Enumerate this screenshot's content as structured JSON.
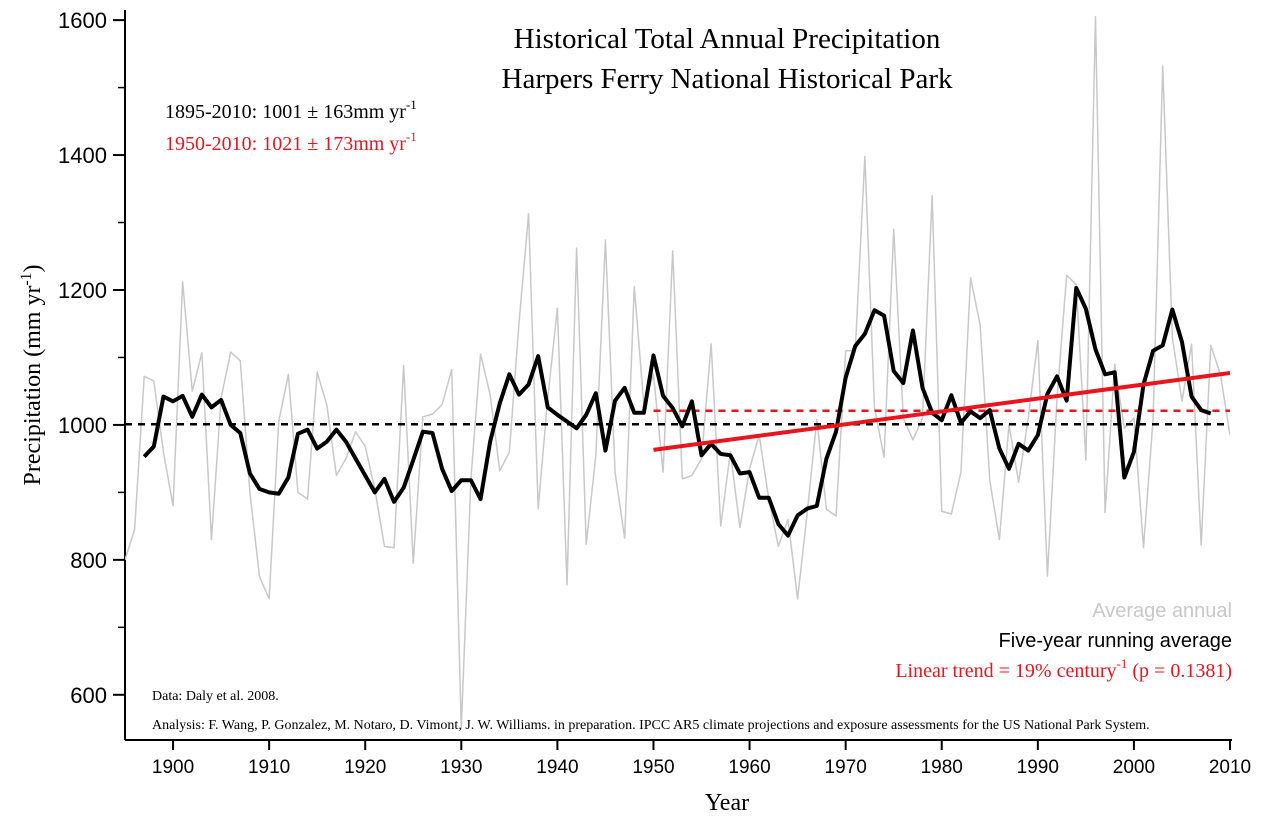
{
  "chart_data": {
    "type": "line",
    "title": [
      "Historical Total Annual Precipitation",
      "Harpers Ferry National Historical Park"
    ],
    "x_label": "Year",
    "y_label": [
      "Precipitation (mm yr",
      "-1",
      ")"
    ],
    "xlim": [
      1895,
      2010
    ],
    "ylim": [
      533,
      1615
    ],
    "xticks": [
      1900,
      1910,
      1920,
      1930,
      1940,
      1950,
      1960,
      1970,
      1980,
      1990,
      2000,
      2010
    ],
    "yticks": [
      600,
      800,
      1000,
      1200,
      1400,
      1600
    ],
    "y_minor_ticks": [
      700,
      900,
      1100,
      1300,
      1500
    ],
    "series": [
      {
        "name": [
          "Average annual"
        ],
        "color": "#c8c8c8",
        "width": 1.5,
        "x": [
          1895,
          1896,
          1897,
          1898,
          1899,
          1900,
          1901,
          1902,
          1903,
          1904,
          1905,
          1906,
          1907,
          1908,
          1909,
          1910,
          1911,
          1912,
          1913,
          1914,
          1915,
          1916,
          1917,
          1918,
          1919,
          1920,
          1921,
          1922,
          1923,
          1924,
          1925,
          1926,
          1927,
          1928,
          1929,
          1930,
          1931,
          1932,
          1933,
          1934,
          1935,
          1936,
          1937,
          1938,
          1939,
          1940,
          1941,
          1942,
          1943,
          1944,
          1945,
          1946,
          1947,
          1948,
          1949,
          1950,
          1951,
          1952,
          1953,
          1954,
          1955,
          1956,
          1957,
          1958,
          1959,
          1960,
          1961,
          1962,
          1963,
          1964,
          1965,
          1966,
          1967,
          1968,
          1969,
          1970,
          1971,
          1972,
          1973,
          1974,
          1975,
          1976,
          1977,
          1978,
          1979,
          1980,
          1981,
          1982,
          1983,
          1984,
          1985,
          1986,
          1987,
          1988,
          1989,
          1990,
          1991,
          1992,
          1993,
          1994,
          1995,
          1996,
          1997,
          1998,
          1999,
          2000,
          2001,
          2002,
          2003,
          2004,
          2005,
          2006,
          2007,
          2008,
          2009,
          2010
        ],
        "values": [
          800,
          845,
          1072,
          1065,
          960,
          880,
          1212,
          1050,
          1107,
          830,
          1040,
          1108,
          1095,
          900,
          775,
          742,
          1005,
          1075,
          900,
          890,
          1078,
          1030,
          925,
          950,
          990,
          968,
          905,
          820,
          818,
          1088,
          795,
          1012,
          1016,
          1030,
          1082,
          550,
          920,
          1105,
          1045,
          932,
          960,
          1150,
          1313,
          876,
          1040,
          1173,
          763,
          1262,
          823,
          955,
          1274,
          930,
          832,
          1205,
          1030,
          1075,
          930,
          1258,
          920,
          925,
          950,
          1120,
          850,
          960,
          848,
          935,
          985,
          890,
          820,
          860,
          742,
          870,
          1008,
          875,
          865,
          1110,
          1110,
          1398,
          1025,
          952,
          1290,
          1010,
          978,
          1010,
          1340,
          872,
          868,
          930,
          1218,
          1148,
          918,
          830,
          1000,
          915,
          1010,
          1125,
          776,
          1040,
          1222,
          1208,
          948,
          1605,
          870,
          1090,
          995,
          1010,
          818,
          1010,
          1532,
          1130,
          1035,
          1120,
          822,
          1118,
          1075,
          985
        ]
      },
      {
        "name": [
          "Five-year running average"
        ],
        "color": "#000000",
        "width": 4,
        "x": [
          1897,
          1898,
          1899,
          1900,
          1901,
          1902,
          1903,
          1904,
          1905,
          1906,
          1907,
          1908,
          1909,
          1910,
          1911,
          1912,
          1913,
          1914,
          1915,
          1916,
          1917,
          1918,
          1919,
          1920,
          1921,
          1922,
          1923,
          1924,
          1925,
          1926,
          1927,
          1928,
          1929,
          1930,
          1931,
          1932,
          1933,
          1934,
          1935,
          1936,
          1937,
          1938,
          1939,
          1940,
          1941,
          1942,
          1943,
          1944,
          1945,
          1946,
          1947,
          1948,
          1949,
          1950,
          1951,
          1952,
          1953,
          1954,
          1955,
          1956,
          1957,
          1958,
          1959,
          1960,
          1961,
          1962,
          1963,
          1964,
          1965,
          1966,
          1967,
          1968,
          1969,
          1970,
          1971,
          1972,
          1973,
          1974,
          1975,
          1976,
          1977,
          1978,
          1979,
          1980,
          1981,
          1982,
          1983,
          1984,
          1985,
          1986,
          1987,
          1988,
          1989,
          1990,
          1991,
          1992,
          1993,
          1994,
          1995,
          1996,
          1997,
          1998,
          1999,
          2000,
          2001,
          2002,
          2003,
          2004,
          2005,
          2006,
          2007,
          2008
        ],
        "values": [
          953,
          968,
          1042,
          1035,
          1043,
          1012,
          1045,
          1026,
          1037,
          1000,
          988,
          928,
          905,
          900,
          898,
          922,
          987,
          993,
          965,
          975,
          993,
          975,
          950,
          925,
          900,
          920,
          886,
          907,
          948,
          990,
          988,
          935,
          902,
          918,
          918,
          890,
          975,
          1032,
          1075,
          1045,
          1060,
          1102,
          1026,
          1015,
          1005,
          995,
          1015,
          1047,
          962,
          1036,
          1055,
          1018,
          1018,
          1103,
          1043,
          1025,
          998,
          1035,
          955,
          972,
          957,
          955,
          928,
          930,
          892,
          892,
          853,
          836,
          866,
          876,
          880,
          950,
          990,
          1070,
          1117,
          1135,
          1170,
          1162,
          1080,
          1062,
          1140,
          1055,
          1018,
          1007,
          1044,
          1003,
          1020,
          1010,
          1022,
          965,
          935,
          972,
          962,
          985,
          1046,
          1072,
          1036,
          1203,
          1172,
          1112,
          1075,
          1078,
          922,
          960,
          1060,
          1110,
          1118,
          1171,
          1123,
          1042,
          1022,
          1017
        ]
      },
      {
        "name": [
          "Linear trend = 19% century",
          "-1",
          " (p = 0.1381)"
        ],
        "color": "#e8141e",
        "width": 4,
        "x": [
          1950,
          2010
        ],
        "values": [
          963,
          1077
        ]
      }
    ],
    "reference_lines": [
      {
        "value": 1001,
        "x": [
          1895,
          2010
        ],
        "color": "#000000"
      },
      {
        "value": 1021,
        "x": [
          1950,
          2010
        ],
        "color": "#e8141e"
      }
    ],
    "annotations": [
      {
        "text": [
          "1895-2010: 1001 ±  163mm yr",
          "-1"
        ],
        "color": "#000000"
      },
      {
        "text": [
          "1950-2010: 1021 ±  173mm yr",
          "-1"
        ],
        "color": "#e8141e"
      }
    ],
    "notes": [
      "Data: Daly et al. 2008.",
      "Analysis: F. Wang, P. Gonzalez, M. Notaro, D. Vimont, J. W. Williams. in preparation. IPCC AR5 climate projections and exposure assessments for the US National Park System."
    ]
  }
}
